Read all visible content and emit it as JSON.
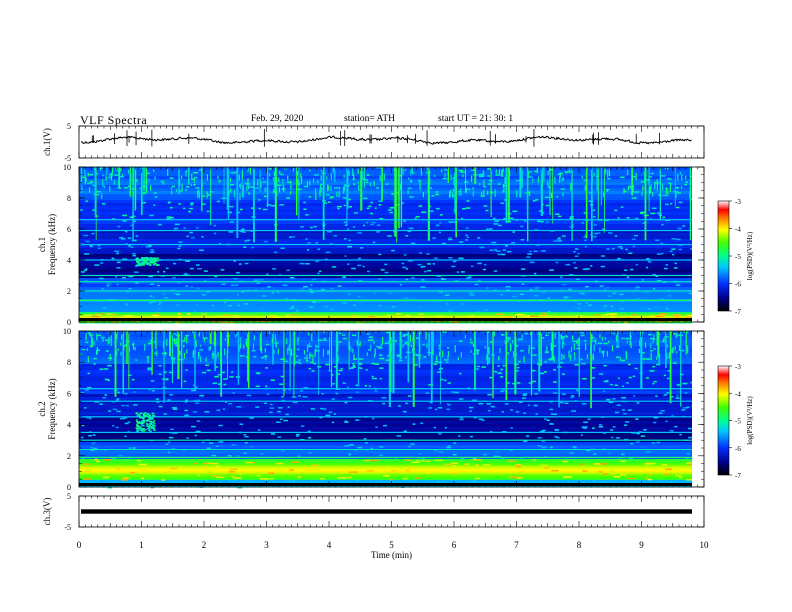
{
  "header": {
    "title": "VLF  Spectra",
    "date": "Feb. 29, 2020",
    "station": "station= ATH",
    "start": "start  UT  =   21: 30: 1"
  },
  "chart_data": [
    {
      "type": "line",
      "panel": "ch1-waveform",
      "ylabel": "ch.1(V)",
      "ylim": [
        -5,
        5
      ],
      "yticks": [
        "5",
        "-5"
      ],
      "x_range_min": [
        0,
        9.83
      ],
      "description_of_series": "noisy waveform around ~0.5 V with spikes",
      "color": "#000000"
    },
    {
      "type": "heatmap",
      "panel": "ch1-spectrogram",
      "ylabel": "ch.1\nFrequency (kHz)",
      "ylabel_lines": [
        "ch.1",
        "Frequency (kHz)"
      ],
      "ylim": [
        0,
        10
      ],
      "yticks": [
        "0",
        "2",
        "4",
        "6",
        "8",
        "10"
      ],
      "colorbar": {
        "label": "log(PSD)(V²/Hz)",
        "range": [
          -7,
          -3
        ],
        "ticks": [
          "-3",
          "-4",
          "-5",
          "-6",
          "-7"
        ]
      },
      "features": {
        "strong_band_khz": [
          0,
          0.6
        ],
        "lines_khz": [
          0.6,
          1.4,
          2.0,
          2.6,
          3.0,
          4.0,
          5.0,
          5.9,
          6.6
        ],
        "burst": {
          "t_min": [
            0.9,
            1.25
          ],
          "f_khz": [
            3.7,
            4.2
          ]
        }
      }
    },
    {
      "type": "heatmap",
      "panel": "ch2-spectrogram",
      "ylabel": "ch.2\nFrequency (kHz)",
      "ylabel_lines": [
        "ch.2",
        "Frequency (kHz)"
      ],
      "ylim": [
        0,
        10
      ],
      "yticks": [
        "0",
        "2",
        "4",
        "6",
        "8",
        "10"
      ],
      "colorbar": {
        "label": "log(PSD)(V²/Hz)",
        "range": [
          -7,
          -3
        ],
        "ticks": [
          "-3",
          "-4",
          "-5",
          "-6",
          "-7"
        ]
      },
      "features": {
        "strong_band_khz": [
          0.5,
          1.8
        ],
        "lines_khz": [
          0.7,
          1.2,
          1.9,
          2.4,
          3.0,
          3.5,
          4.5,
          5.5,
          6.3
        ],
        "burst": {
          "t_min": [
            0.9,
            1.2
          ],
          "f_khz": [
            3.6,
            4.8
          ]
        }
      }
    },
    {
      "type": "line",
      "panel": "ch3-waveform",
      "ylabel": "ch.3(V)",
      "ylim": [
        -5,
        5
      ],
      "yticks": [
        "5",
        "-5"
      ],
      "value_flat": 0,
      "color": "#000000"
    }
  ],
  "x_axis": {
    "xlabel": "Time  (min)",
    "xlim": [
      0,
      10
    ],
    "ticks": [
      "0",
      "1",
      "2",
      "3",
      "4",
      "5",
      "6",
      "7",
      "8",
      "9",
      "10"
    ]
  }
}
